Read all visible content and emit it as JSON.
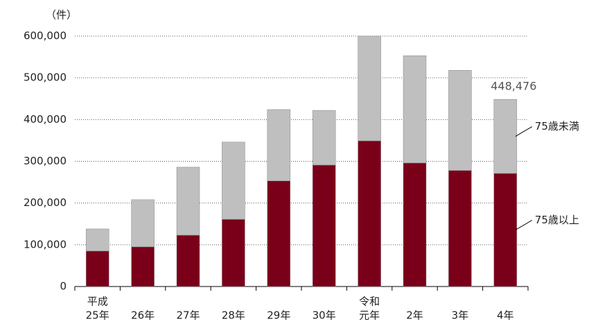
{
  "chart_data": {
    "type": "stacked-bar",
    "y_label": "（件）",
    "categories": [
      [
        "平成",
        "25年"
      ],
      [
        "26年"
      ],
      [
        "27年"
      ],
      [
        "28年"
      ],
      [
        "29年"
      ],
      [
        "30年"
      ],
      [
        "令和",
        "元年"
      ],
      [
        "2年"
      ],
      [
        "3年"
      ],
      [
        "4年"
      ]
    ],
    "series": [
      {
        "name": "75歳以上",
        "color": "#7a0019",
        "values": [
          85000,
          95000,
          123000,
          161000,
          253000,
          291000,
          349000,
          296000,
          278000,
          271000
        ]
      },
      {
        "name": "75歳未満",
        "color": "#bfbfbf",
        "values": [
          53000,
          113000,
          163000,
          185000,
          171000,
          131000,
          251000,
          257000,
          240000,
          177476
        ]
      }
    ],
    "annotations": [
      {
        "text": "448,476",
        "value": 448476,
        "category": 9
      }
    ],
    "ylim": [
      0,
      600000
    ],
    "yticks": [
      0,
      {
        "value": 100000,
        "label": "100,000"
      },
      {
        "value": 200000,
        "label": "200,000"
      },
      {
        "value": 300000,
        "label": "300,000"
      },
      {
        "value": 400000,
        "label": "400,000"
      },
      {
        "value": 500000,
        "label": "500,000"
      },
      {
        "value": 600000,
        "label": "600,000"
      }
    ],
    "grid": true
  }
}
